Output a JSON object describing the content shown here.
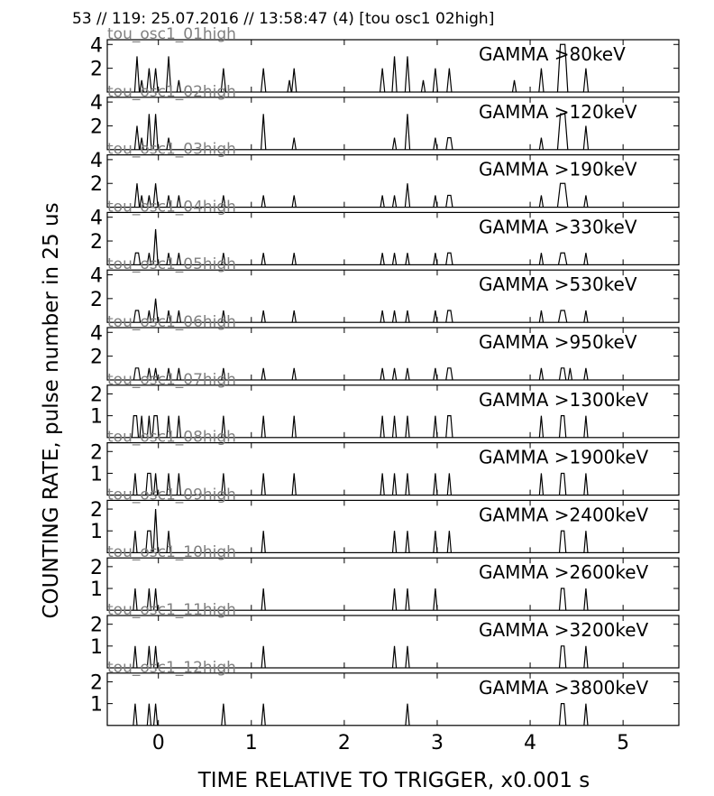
{
  "chart_data": {
    "type": "line",
    "title": "53 // 119:   25.07.2016 // 13:58:47 (4)  [tou osc1 02high]",
    "xlabel": "TIME RELATIVE TO TRIGGER,   x0.001 s",
    "ylabel": "COUNTING RATE,    pulse number in 25 us",
    "xlim": [
      -0.55,
      5.6
    ],
    "x_ticks": [
      0,
      1,
      2,
      3,
      4,
      5
    ],
    "x_tick_labels": [
      "0",
      "1",
      "2",
      "3",
      "4",
      "5"
    ],
    "grid": false,
    "panels": [
      {
        "label": "GAMMA >80keV",
        "channel": "tou_osc1_01high",
        "ylim": [
          0,
          4.4
        ],
        "y_ticks": [
          2,
          4
        ],
        "pulses": [
          {
            "x": -0.23,
            "y": 3,
            "w": 0.05
          },
          {
            "x": -0.18,
            "y": 1,
            "w": 0.04
          },
          {
            "x": -0.1,
            "y": 2,
            "w": 0.05
          },
          {
            "x": -0.03,
            "y": 2,
            "w": 0.05
          },
          {
            "x": 0.11,
            "y": 3,
            "w": 0.05
          },
          {
            "x": 0.22,
            "y": 1,
            "w": 0.04
          },
          {
            "x": 0.7,
            "y": 2,
            "w": 0.05
          },
          {
            "x": 1.13,
            "y": 2,
            "w": 0.05
          },
          {
            "x": 1.41,
            "y": 1,
            "w": 0.04
          },
          {
            "x": 1.46,
            "y": 2,
            "w": 0.05
          },
          {
            "x": 2.41,
            "y": 2,
            "w": 0.05
          },
          {
            "x": 2.54,
            "y": 3,
            "w": 0.05
          },
          {
            "x": 2.68,
            "y": 3,
            "w": 0.05
          },
          {
            "x": 2.85,
            "y": 1,
            "w": 0.04
          },
          {
            "x": 2.98,
            "y": 2,
            "w": 0.05
          },
          {
            "x": 3.13,
            "y": 2,
            "w": 0.05
          },
          {
            "x": 3.83,
            "y": 1,
            "w": 0.04
          },
          {
            "x": 4.12,
            "y": 2,
            "w": 0.05
          },
          {
            "x": 4.35,
            "y": 4,
            "w": 0.11
          },
          {
            "x": 4.6,
            "y": 2,
            "w": 0.05
          }
        ]
      },
      {
        "label": "GAMMA >120keV",
        "channel": "tou_osc1_02high",
        "ylim": [
          0,
          4.4
        ],
        "y_ticks": [
          2,
          4
        ],
        "pulses": [
          {
            "x": -0.23,
            "y": 2,
            "w": 0.05
          },
          {
            "x": -0.18,
            "y": 1,
            "w": 0.04
          },
          {
            "x": -0.1,
            "y": 3,
            "w": 0.05
          },
          {
            "x": -0.03,
            "y": 3,
            "w": 0.05
          },
          {
            "x": 0.11,
            "y": 1,
            "w": 0.04
          },
          {
            "x": 1.13,
            "y": 3,
            "w": 0.05
          },
          {
            "x": 1.46,
            "y": 1,
            "w": 0.04
          },
          {
            "x": 2.54,
            "y": 1,
            "w": 0.04
          },
          {
            "x": 2.68,
            "y": 3,
            "w": 0.05
          },
          {
            "x": 2.98,
            "y": 1,
            "w": 0.04
          },
          {
            "x": 3.13,
            "y": 1,
            "w": 0.07
          },
          {
            "x": 4.12,
            "y": 1,
            "w": 0.04
          },
          {
            "x": 4.35,
            "y": 3,
            "w": 0.11
          },
          {
            "x": 4.6,
            "y": 2,
            "w": 0.05
          }
        ]
      },
      {
        "label": "GAMMA >190keV",
        "channel": "tou_osc1_03high",
        "ylim": [
          0,
          4.4
        ],
        "y_ticks": [
          2,
          4
        ],
        "pulses": [
          {
            "x": -0.23,
            "y": 2,
            "w": 0.05
          },
          {
            "x": -0.18,
            "y": 1,
            "w": 0.04
          },
          {
            "x": -0.1,
            "y": 1,
            "w": 0.04
          },
          {
            "x": -0.03,
            "y": 2,
            "w": 0.05
          },
          {
            "x": 0.11,
            "y": 1,
            "w": 0.04
          },
          {
            "x": 0.22,
            "y": 1,
            "w": 0.04
          },
          {
            "x": 0.7,
            "y": 1,
            "w": 0.04
          },
          {
            "x": 1.13,
            "y": 1,
            "w": 0.04
          },
          {
            "x": 1.46,
            "y": 1,
            "w": 0.04
          },
          {
            "x": 2.41,
            "y": 1,
            "w": 0.04
          },
          {
            "x": 2.54,
            "y": 1,
            "w": 0.04
          },
          {
            "x": 2.68,
            "y": 2,
            "w": 0.05
          },
          {
            "x": 2.98,
            "y": 1,
            "w": 0.04
          },
          {
            "x": 3.13,
            "y": 1,
            "w": 0.07
          },
          {
            "x": 4.12,
            "y": 1,
            "w": 0.04
          },
          {
            "x": 4.35,
            "y": 2,
            "w": 0.11
          },
          {
            "x": 4.6,
            "y": 1,
            "w": 0.04
          }
        ]
      },
      {
        "label": "GAMMA >330keV",
        "channel": "tou_osc1_04high",
        "ylim": [
          0,
          4.4
        ],
        "y_ticks": [
          2,
          4
        ],
        "pulses": [
          {
            "x": -0.23,
            "y": 1,
            "w": 0.07
          },
          {
            "x": -0.1,
            "y": 1,
            "w": 0.04
          },
          {
            "x": -0.03,
            "y": 3,
            "w": 0.05
          },
          {
            "x": 0.11,
            "y": 1,
            "w": 0.04
          },
          {
            "x": 0.22,
            "y": 1,
            "w": 0.04
          },
          {
            "x": 0.7,
            "y": 1,
            "w": 0.04
          },
          {
            "x": 1.13,
            "y": 1,
            "w": 0.04
          },
          {
            "x": 1.46,
            "y": 1,
            "w": 0.04
          },
          {
            "x": 2.41,
            "y": 1,
            "w": 0.04
          },
          {
            "x": 2.54,
            "y": 1,
            "w": 0.04
          },
          {
            "x": 2.68,
            "y": 1,
            "w": 0.04
          },
          {
            "x": 2.98,
            "y": 1,
            "w": 0.04
          },
          {
            "x": 3.13,
            "y": 1,
            "w": 0.07
          },
          {
            "x": 4.12,
            "y": 1,
            "w": 0.04
          },
          {
            "x": 4.35,
            "y": 1,
            "w": 0.09
          },
          {
            "x": 4.6,
            "y": 1,
            "w": 0.04
          }
        ]
      },
      {
        "label": "GAMMA >530keV",
        "channel": "tou_osc1_05high",
        "ylim": [
          0,
          4.4
        ],
        "y_ticks": [
          2,
          4
        ],
        "pulses": [
          {
            "x": -0.23,
            "y": 1,
            "w": 0.07
          },
          {
            "x": -0.1,
            "y": 1,
            "w": 0.04
          },
          {
            "x": -0.03,
            "y": 2,
            "w": 0.05
          },
          {
            "x": 0.11,
            "y": 1,
            "w": 0.04
          },
          {
            "x": 0.22,
            "y": 1,
            "w": 0.04
          },
          {
            "x": 0.7,
            "y": 1,
            "w": 0.04
          },
          {
            "x": 1.13,
            "y": 1,
            "w": 0.04
          },
          {
            "x": 1.46,
            "y": 1,
            "w": 0.04
          },
          {
            "x": 2.41,
            "y": 1,
            "w": 0.04
          },
          {
            "x": 2.54,
            "y": 1,
            "w": 0.04
          },
          {
            "x": 2.68,
            "y": 1,
            "w": 0.04
          },
          {
            "x": 2.98,
            "y": 1,
            "w": 0.04
          },
          {
            "x": 3.13,
            "y": 1,
            "w": 0.07
          },
          {
            "x": 4.12,
            "y": 1,
            "w": 0.04
          },
          {
            "x": 4.35,
            "y": 1,
            "w": 0.09
          },
          {
            "x": 4.6,
            "y": 1,
            "w": 0.04
          }
        ]
      },
      {
        "label": "GAMMA >950keV",
        "channel": "tou_osc1_06high",
        "ylim": [
          0,
          4.4
        ],
        "y_ticks": [
          2,
          4
        ],
        "pulses": [
          {
            "x": -0.23,
            "y": 1,
            "w": 0.07
          },
          {
            "x": -0.1,
            "y": 1,
            "w": 0.04
          },
          {
            "x": -0.03,
            "y": 1,
            "w": 0.04
          },
          {
            "x": 0.11,
            "y": 1,
            "w": 0.04
          },
          {
            "x": 0.22,
            "y": 1,
            "w": 0.04
          },
          {
            "x": 0.7,
            "y": 1,
            "w": 0.04
          },
          {
            "x": 1.13,
            "y": 1,
            "w": 0.04
          },
          {
            "x": 1.46,
            "y": 1,
            "w": 0.04
          },
          {
            "x": 2.41,
            "y": 1,
            "w": 0.04
          },
          {
            "x": 2.54,
            "y": 1,
            "w": 0.04
          },
          {
            "x": 2.68,
            "y": 1,
            "w": 0.04
          },
          {
            "x": 2.98,
            "y": 1,
            "w": 0.04
          },
          {
            "x": 3.13,
            "y": 1,
            "w": 0.07
          },
          {
            "x": 4.12,
            "y": 1,
            "w": 0.04
          },
          {
            "x": 4.35,
            "y": 1,
            "w": 0.07
          },
          {
            "x": 4.43,
            "y": 1,
            "w": 0.04
          },
          {
            "x": 4.6,
            "y": 1,
            "w": 0.04
          }
        ]
      },
      {
        "label": "GAMMA >1300keV",
        "channel": "tou_osc1_07high",
        "ylim": [
          0,
          2.4
        ],
        "y_ticks": [
          1,
          2
        ],
        "pulses": [
          {
            "x": -0.25,
            "y": 1,
            "w": 0.07
          },
          {
            "x": -0.18,
            "y": 1,
            "w": 0.04
          },
          {
            "x": -0.1,
            "y": 1,
            "w": 0.04
          },
          {
            "x": -0.03,
            "y": 1,
            "w": 0.07
          },
          {
            "x": 0.11,
            "y": 1,
            "w": 0.04
          },
          {
            "x": 0.22,
            "y": 1,
            "w": 0.04
          },
          {
            "x": 0.7,
            "y": 1,
            "w": 0.04
          },
          {
            "x": 1.13,
            "y": 1,
            "w": 0.04
          },
          {
            "x": 1.46,
            "y": 1,
            "w": 0.04
          },
          {
            "x": 2.41,
            "y": 1,
            "w": 0.04
          },
          {
            "x": 2.54,
            "y": 1,
            "w": 0.04
          },
          {
            "x": 2.68,
            "y": 1,
            "w": 0.04
          },
          {
            "x": 2.98,
            "y": 1,
            "w": 0.04
          },
          {
            "x": 3.13,
            "y": 1,
            "w": 0.07
          },
          {
            "x": 4.12,
            "y": 1,
            "w": 0.04
          },
          {
            "x": 4.35,
            "y": 1,
            "w": 0.07
          },
          {
            "x": 4.6,
            "y": 1,
            "w": 0.04
          }
        ]
      },
      {
        "label": "GAMMA >1900keV",
        "channel": "tou_osc1_08high",
        "ylim": [
          0,
          2.4
        ],
        "y_ticks": [
          1,
          2
        ],
        "pulses": [
          {
            "x": -0.25,
            "y": 1,
            "w": 0.04
          },
          {
            "x": -0.1,
            "y": 1,
            "w": 0.07
          },
          {
            "x": -0.03,
            "y": 1,
            "w": 0.04
          },
          {
            "x": 0.11,
            "y": 1,
            "w": 0.04
          },
          {
            "x": 0.22,
            "y": 1,
            "w": 0.04
          },
          {
            "x": 0.7,
            "y": 1,
            "w": 0.04
          },
          {
            "x": 1.13,
            "y": 1,
            "w": 0.04
          },
          {
            "x": 1.46,
            "y": 1,
            "w": 0.04
          },
          {
            "x": 2.41,
            "y": 1,
            "w": 0.04
          },
          {
            "x": 2.54,
            "y": 1,
            "w": 0.04
          },
          {
            "x": 2.68,
            "y": 1,
            "w": 0.04
          },
          {
            "x": 2.98,
            "y": 1,
            "w": 0.04
          },
          {
            "x": 3.13,
            "y": 1,
            "w": 0.04
          },
          {
            "x": 4.12,
            "y": 1,
            "w": 0.04
          },
          {
            "x": 4.35,
            "y": 1,
            "w": 0.07
          },
          {
            "x": 4.6,
            "y": 1,
            "w": 0.04
          }
        ]
      },
      {
        "label": "GAMMA >2400keV",
        "channel": "tou_osc1_09high",
        "ylim": [
          0,
          2.4
        ],
        "y_ticks": [
          1,
          2
        ],
        "pulses": [
          {
            "x": -0.25,
            "y": 1,
            "w": 0.04
          },
          {
            "x": -0.1,
            "y": 1,
            "w": 0.07
          },
          {
            "x": -0.03,
            "y": 2,
            "w": 0.05
          },
          {
            "x": 0.11,
            "y": 1,
            "w": 0.04
          },
          {
            "x": 1.13,
            "y": 1,
            "w": 0.04
          },
          {
            "x": 2.54,
            "y": 1,
            "w": 0.04
          },
          {
            "x": 2.68,
            "y": 1,
            "w": 0.04
          },
          {
            "x": 2.98,
            "y": 1,
            "w": 0.04
          },
          {
            "x": 3.13,
            "y": 1,
            "w": 0.04
          },
          {
            "x": 4.35,
            "y": 1,
            "w": 0.07
          },
          {
            "x": 4.6,
            "y": 1,
            "w": 0.04
          }
        ]
      },
      {
        "label": "GAMMA >2600keV",
        "channel": "tou_osc1_10high",
        "ylim": [
          0,
          2.4
        ],
        "y_ticks": [
          1,
          2
        ],
        "pulses": [
          {
            "x": -0.25,
            "y": 1,
            "w": 0.04
          },
          {
            "x": -0.1,
            "y": 1,
            "w": 0.04
          },
          {
            "x": -0.03,
            "y": 1,
            "w": 0.04
          },
          {
            "x": 1.13,
            "y": 1,
            "w": 0.04
          },
          {
            "x": 2.54,
            "y": 1,
            "w": 0.04
          },
          {
            "x": 2.68,
            "y": 1,
            "w": 0.04
          },
          {
            "x": 2.98,
            "y": 1,
            "w": 0.04
          },
          {
            "x": 4.35,
            "y": 1,
            "w": 0.07
          },
          {
            "x": 4.6,
            "y": 1,
            "w": 0.04
          }
        ]
      },
      {
        "label": "GAMMA >3200keV",
        "channel": "tou_osc1_11high",
        "ylim": [
          0,
          2.4
        ],
        "y_ticks": [
          1,
          2
        ],
        "pulses": [
          {
            "x": -0.25,
            "y": 1,
            "w": 0.04
          },
          {
            "x": -0.1,
            "y": 1,
            "w": 0.04
          },
          {
            "x": -0.03,
            "y": 1,
            "w": 0.04
          },
          {
            "x": 1.13,
            "y": 1,
            "w": 0.04
          },
          {
            "x": 2.54,
            "y": 1,
            "w": 0.04
          },
          {
            "x": 2.68,
            "y": 1,
            "w": 0.04
          },
          {
            "x": 4.35,
            "y": 1,
            "w": 0.07
          },
          {
            "x": 4.6,
            "y": 1,
            "w": 0.04
          }
        ]
      },
      {
        "label": "GAMMA >3800keV",
        "channel": "tou_osc1_12high",
        "ylim": [
          0,
          2.4
        ],
        "y_ticks": [
          1,
          2
        ],
        "pulses": [
          {
            "x": -0.25,
            "y": 1,
            "w": 0.04
          },
          {
            "x": -0.1,
            "y": 1,
            "w": 0.04
          },
          {
            "x": -0.03,
            "y": 1,
            "w": 0.04
          },
          {
            "x": 0.7,
            "y": 1,
            "w": 0.04
          },
          {
            "x": 1.13,
            "y": 1,
            "w": 0.04
          },
          {
            "x": 2.68,
            "y": 1,
            "w": 0.04
          },
          {
            "x": 4.35,
            "y": 1,
            "w": 0.07
          },
          {
            "x": 4.6,
            "y": 1,
            "w": 0.04
          }
        ]
      }
    ],
    "colors": {
      "trace": "#000000",
      "channel_label": "#808080",
      "axes": "#000000"
    }
  }
}
